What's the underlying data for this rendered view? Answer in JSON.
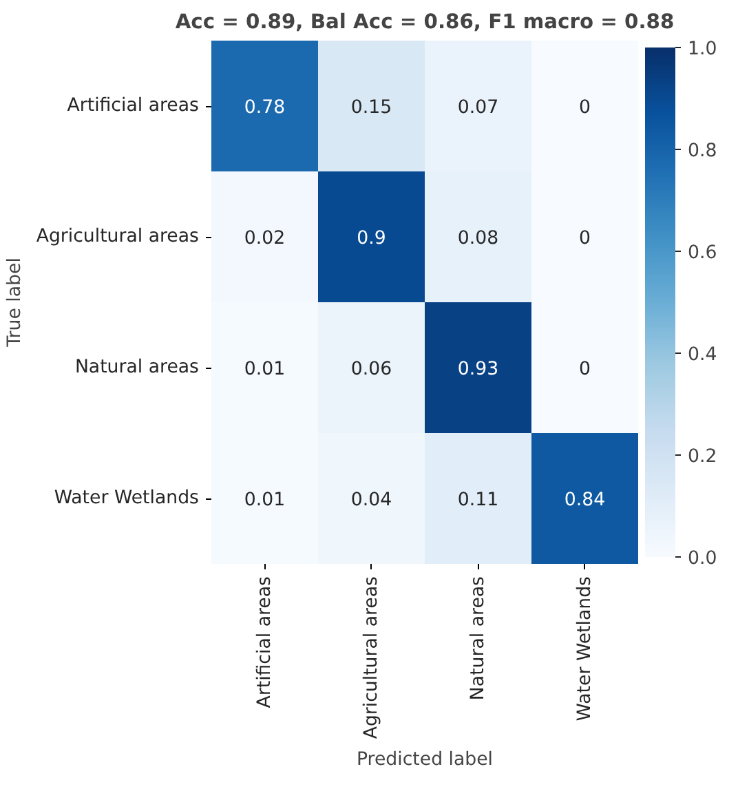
{
  "chart_data": {
    "type": "heatmap",
    "title": "Acc = 0.89, Bal Acc = 0.86, F1 macro = 0.88",
    "xlabel": "Predicted label",
    "ylabel": "True label",
    "categories": [
      "Artificial areas",
      "Agricultural areas",
      "Natural areas",
      "Water Wetlands"
    ],
    "y_categories": [
      "Artificial areas",
      "Agricultural areas",
      "Natural areas",
      "Water Wetlands"
    ],
    "cells": [
      [
        0.78,
        0.15,
        0.07,
        0
      ],
      [
        0.02,
        0.9,
        0.08,
        0
      ],
      [
        0.01,
        0.06,
        0.93,
        0
      ],
      [
        0.01,
        0.04,
        0.11,
        0.84
      ]
    ],
    "clim": [
      0.0,
      1.0
    ],
    "cticks": [
      {
        "value": 0.0,
        "label": "0.0"
      },
      {
        "value": 0.2,
        "label": "0.2"
      },
      {
        "value": 0.4,
        "label": "0.4"
      },
      {
        "value": 0.6,
        "label": "0.6"
      },
      {
        "value": 0.8,
        "label": "0.8"
      },
      {
        "value": 1.0,
        "label": "1.0"
      }
    ],
    "data_labels": true
  }
}
